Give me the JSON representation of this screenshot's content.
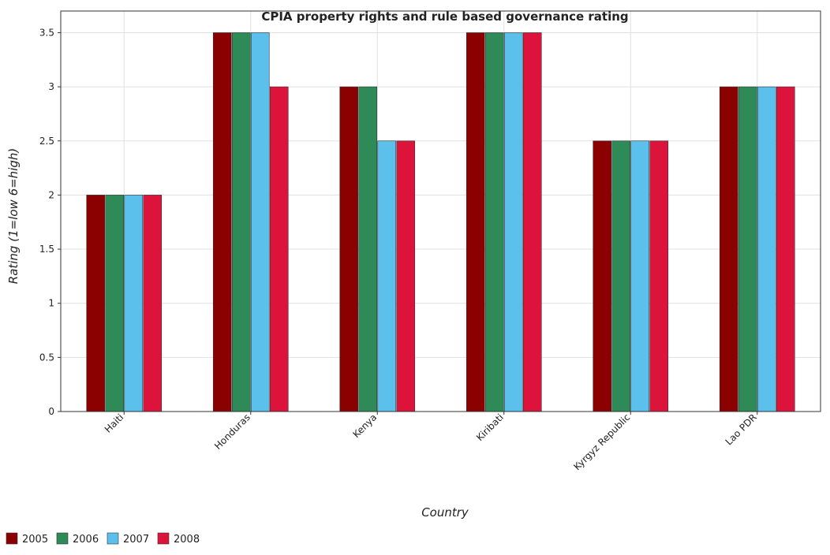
{
  "chart_data": {
    "type": "bar",
    "title": "CPIA property rights and rule based governance rating",
    "xlabel": "Country",
    "ylabel": "Rating (1=low 6=high)",
    "categories": [
      "Haiti",
      "Honduras",
      "Kenya",
      "Kiribati",
      "Kyrgyz Republic",
      "Lao PDR"
    ],
    "series": [
      {
        "name": "2005",
        "color": "#8b0000",
        "values": [
          2.0,
          3.5,
          3.0,
          3.5,
          2.5,
          3.0
        ]
      },
      {
        "name": "2006",
        "color": "#2e8b57",
        "values": [
          2.0,
          3.5,
          3.0,
          3.5,
          2.5,
          3.0
        ]
      },
      {
        "name": "2007",
        "color": "#5bc0eb",
        "values": [
          2.0,
          3.5,
          2.5,
          3.5,
          2.5,
          3.0
        ]
      },
      {
        "name": "2008",
        "color": "#dc143c",
        "values": [
          2.0,
          3.0,
          2.5,
          3.5,
          2.5,
          3.0
        ]
      }
    ],
    "yticks": [
      "0",
      "0.5",
      "1",
      "1.5",
      "2",
      "2.5",
      "3",
      "3.5"
    ],
    "ylim": [
      0,
      3.7
    ],
    "grid": true,
    "legend_position": "bottom-left"
  }
}
